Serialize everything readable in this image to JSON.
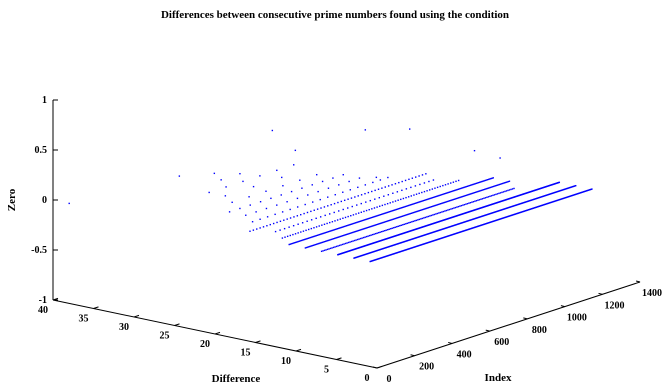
{
  "chart_data": {
    "type": "scatter",
    "title": "Differences between consecutive prime numbers found using the condition",
    "zlabel": "Zero",
    "xlabel": "Difference",
    "ylabel": "Index",
    "zlim": [
      -1,
      1
    ],
    "xlim": [
      0,
      40
    ],
    "ylim": [
      0,
      1400
    ],
    "z_ticks": [
      "-1",
      "-0.5",
      "0",
      "0.5",
      "1"
    ],
    "x_ticks": [
      "0",
      "5",
      "10",
      "15",
      "20",
      "25",
      "30",
      "35",
      "40"
    ],
    "y_ticks": [
      "0",
      "200",
      "400",
      "600",
      "800",
      "1000",
      "1200",
      "1400"
    ],
    "series_color": "#0000ff",
    "grid": false,
    "groups": [
      {
        "diff": 2,
        "zero": 0,
        "index_from": 50,
        "index_to": 1230,
        "step": 4
      },
      {
        "diff": 4,
        "zero": 0,
        "index_from": 50,
        "index_to": 1230,
        "step": 4
      },
      {
        "diff": 6,
        "zero": 0,
        "index_from": 50,
        "index_to": 1230,
        "step": 3
      },
      {
        "diff": 8,
        "zero": 0,
        "index_from": 50,
        "index_to": 1080,
        "step": 8
      },
      {
        "diff": 10,
        "zero": 0,
        "index_from": 50,
        "index_to": 1140,
        "step": 6
      },
      {
        "diff": 12,
        "zero": 0,
        "index_from": 50,
        "index_to": 1140,
        "step": 6
      },
      {
        "diff": 14,
        "zero": 0,
        "index_from": 100,
        "index_to": 1050,
        "step": 14
      },
      {
        "diff": 16,
        "zero": 0,
        "index_from": 150,
        "index_to": 1000,
        "step": 24
      },
      {
        "diff": 18,
        "zero": 0,
        "index_from": 100,
        "index_to": 1050,
        "step": 18
      },
      {
        "diff": 20,
        "zero": 0,
        "index_from": 200,
        "index_to": 950,
        "step": 40
      },
      {
        "diff": 22,
        "zero": 0,
        "index_from": 250,
        "index_to": 900,
        "step": 55
      },
      {
        "diff": 24,
        "zero": 0,
        "index_from": 250,
        "index_to": 900,
        "step": 55
      },
      {
        "diff": 26,
        "zero": 0,
        "index_from": 350,
        "index_to": 800,
        "step": 90
      },
      {
        "diff": 28,
        "zero": 0,
        "index_from": 400,
        "index_to": 700,
        "step": 150
      },
      {
        "diff": 30,
        "zero": 0,
        "index_from": 400,
        "index_to": 850,
        "step": 90
      },
      {
        "diff": 32,
        "zero": 0,
        "index_from": 550,
        "index_to": 650,
        "step": 100
      },
      {
        "diff": 34,
        "zero": 0,
        "index_from": 600,
        "index_to": 600,
        "step": 100
      },
      {
        "diff": 36,
        "zero": 0,
        "index_from": 500,
        "index_to": 500,
        "step": 100
      }
    ],
    "extra_points": [
      {
        "diff": 38,
        "index": 0,
        "zero": 0
      },
      {
        "diff": 8,
        "index": 1000,
        "zero": 0.35
      },
      {
        "diff": 10,
        "index": 950,
        "zero": 0.42
      },
      {
        "diff": 14,
        "index": 600,
        "zero": 0.3
      },
      {
        "diff": 18,
        "index": 950,
        "zero": 0.5
      },
      {
        "diff": 20,
        "index": 800,
        "zero": 0.55
      },
      {
        "diff": 24,
        "index": 600,
        "zero": 0.4
      },
      {
        "diff": 28,
        "index": 650,
        "zero": 0.5
      }
    ]
  }
}
